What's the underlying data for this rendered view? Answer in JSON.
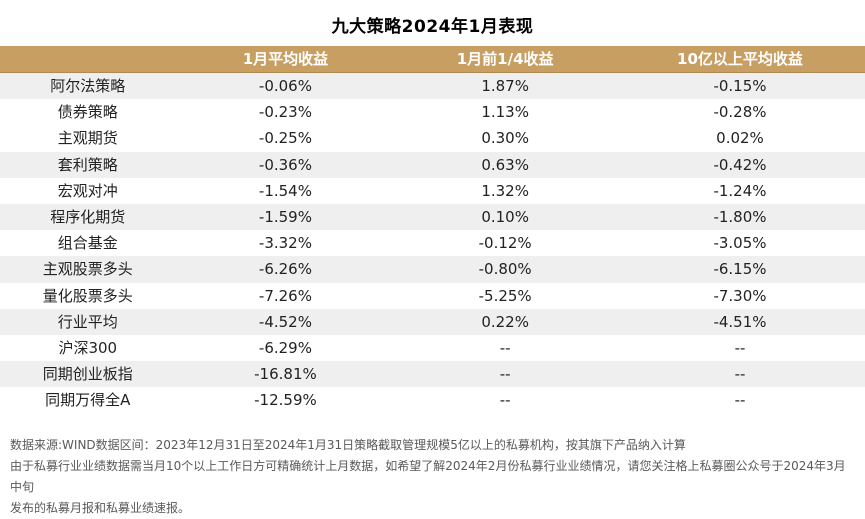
{
  "title": "九大策略2024年1月表现",
  "table": {
    "columns": [
      "",
      "1月平均收益",
      "1月前1/4收益",
      "10亿以上平均收益"
    ],
    "rows": [
      {
        "name": "阿尔法策略",
        "avg": "-0.06%",
        "q1": "1.87%",
        "b10": "-0.15%"
      },
      {
        "name": "债券策略",
        "avg": "-0.23%",
        "q1": "1.13%",
        "b10": "-0.28%"
      },
      {
        "name": "主观期货",
        "avg": "-0.25%",
        "q1": "0.30%",
        "b10": "0.02%"
      },
      {
        "name": "套利策略",
        "avg": "-0.36%",
        "q1": "0.63%",
        "b10": "-0.42%"
      },
      {
        "name": "宏观对冲",
        "avg": "-1.54%",
        "q1": "1.32%",
        "b10": "-1.24%"
      },
      {
        "name": "程序化期货",
        "avg": "-1.59%",
        "q1": "0.10%",
        "b10": "-1.80%"
      },
      {
        "name": "组合基金",
        "avg": "-3.32%",
        "q1": "-0.12%",
        "b10": "-3.05%"
      },
      {
        "name": "主观股票多头",
        "avg": "-6.26%",
        "q1": "-0.80%",
        "b10": "-6.15%"
      },
      {
        "name": "量化股票多头",
        "avg": "-7.26%",
        "q1": "-5.25%",
        "b10": "-7.30%"
      },
      {
        "name": "行业平均",
        "avg": "-4.52%",
        "q1": "0.22%",
        "b10": "-4.51%"
      },
      {
        "name": "沪深300",
        "avg": "-6.29%",
        "q1": "--",
        "b10": "--"
      },
      {
        "name": "同期创业板指",
        "avg": "-16.81%",
        "q1": "--",
        "b10": "--"
      },
      {
        "name": "同期万得全A",
        "avg": "-12.59%",
        "q1": "--",
        "b10": "--"
      }
    ]
  },
  "colors": {
    "header_bg": "#c89f63",
    "header_text": "#ffffff",
    "stripe_bg": "#efefef",
    "body_text": "#222222",
    "footer_text": "#595959"
  },
  "footer": {
    "lines": [
      "数据来源:WIND数据区间：2023年12月31日至2024年1月31日策略截取管理规模5亿以上的私募机构，按其旗下产品纳入计算",
      "由于私募行业业绩数据需当月10个以上工作日方可精确统计上月数据，如希望了解2024年2月份私募行业业绩情况，请您关注格上私募圈公众号于2024年3月中旬",
      "发布的私募月报和私募业绩速报。"
    ]
  }
}
